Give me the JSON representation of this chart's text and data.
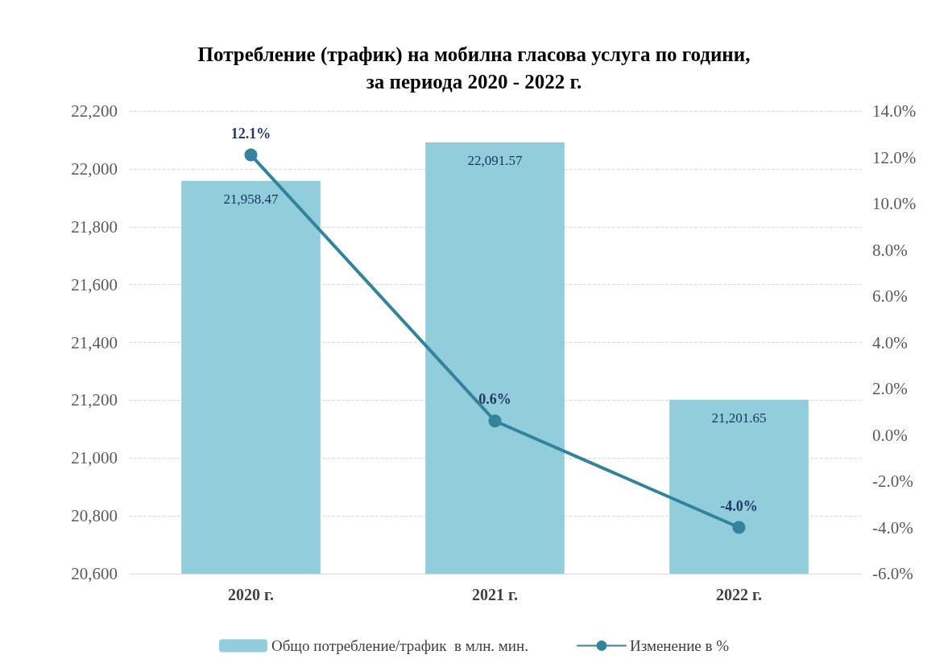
{
  "chart_data": {
    "type": "bar",
    "title": "Потребление (трафик) на мобилна гласова услуга по години,\nза периода 2020 - 2022 г.",
    "categories": [
      "2020 г.",
      "2021 г.",
      "2022 г."
    ],
    "series": [
      {
        "name": "Общо потребление/трафик  в млн. мин.",
        "color": "#92cddc",
        "values": [
          21958.47,
          22091.57,
          21201.65
        ],
        "value_labels": [
          "21,958.47",
          "22,091.57",
          "21,201.65"
        ]
      },
      {
        "name": "Изменение в %",
        "type": "line",
        "axis": "y2",
        "color": "#31849b",
        "values": [
          12.1,
          0.6,
          -4.0
        ],
        "value_labels": [
          "12.1%",
          "0.6%",
          "-4.0%"
        ]
      }
    ],
    "ylim": [
      20600,
      22200
    ],
    "yticks": [
      {
        "value": 20600,
        "label": "20,600"
      },
      {
        "value": 20800,
        "label": "20,800"
      },
      {
        "value": 21000,
        "label": "21,000"
      },
      {
        "value": 21200,
        "label": "21,200"
      },
      {
        "value": 21400,
        "label": "21,400"
      },
      {
        "value": 21600,
        "label": "21,600"
      },
      {
        "value": 21800,
        "label": "21,800"
      },
      {
        "value": 22000,
        "label": "22,000"
      },
      {
        "value": 22200,
        "label": "22,200"
      }
    ],
    "y2lim": [
      -6,
      14
    ],
    "y2ticks": [
      {
        "value": -6,
        "label": "-6.0%"
      },
      {
        "value": -4,
        "label": "-4.0%"
      },
      {
        "value": -2,
        "label": "-2.0%"
      },
      {
        "value": 0,
        "label": "0.0%"
      },
      {
        "value": 2,
        "label": "2.0%"
      },
      {
        "value": 4,
        "label": "4.0%"
      },
      {
        "value": 6,
        "label": "6.0%"
      },
      {
        "value": 8,
        "label": "8.0%"
      },
      {
        "value": 10,
        "label": "10.0%"
      },
      {
        "value": 12,
        "label": "12.0%"
      },
      {
        "value": 14,
        "label": "14.0%"
      }
    ],
    "grid": "y",
    "legend": "bottom",
    "marker": "circle",
    "line_style": "solid"
  }
}
